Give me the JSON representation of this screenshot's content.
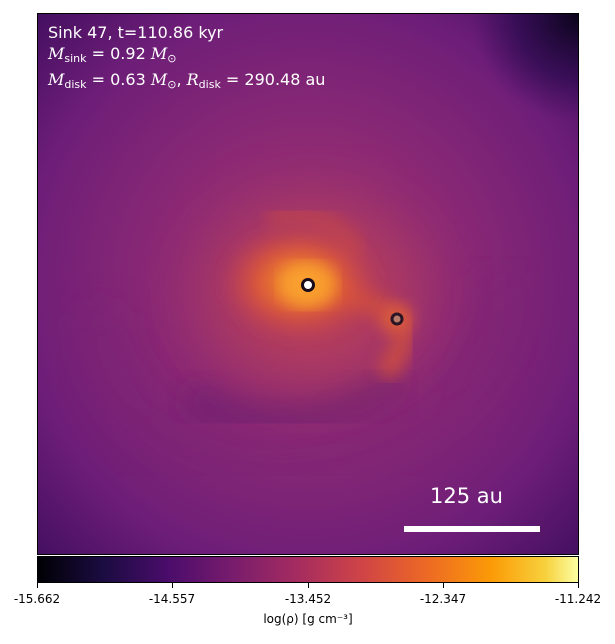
{
  "panel": {
    "title_line": "Sink 47, t=110.86 kyr",
    "msink": {
      "symbol": "M",
      "subscript": "sink",
      "value": "= 0.92",
      "unit": "M",
      "unit_subscript": "⊙"
    },
    "mdisk": {
      "symbol": "M",
      "subscript": "disk",
      "value": "= 0.63",
      "unit": "M",
      "unit_subscript": "⊙",
      "separator": ", ",
      "rsymbol": "R",
      "rsubscript": "disk",
      "rvalue": "= 290.48 au"
    },
    "scalebar_label": "125 au"
  },
  "colorbar": {
    "colormap": "inferno",
    "ticks": [
      "-15.662",
      "-14.557",
      "-13.452",
      "-12.347",
      "-11.242"
    ],
    "label": "log(ρ) [g cm⁻³]"
  },
  "sinks": [
    {
      "id": "primary",
      "ring_color": "#1a0b1a",
      "fill_color": "#ffffff"
    },
    {
      "id": "secondary",
      "ring_color": "#2b1524",
      "fill_color": "#b87a6a"
    }
  ]
}
